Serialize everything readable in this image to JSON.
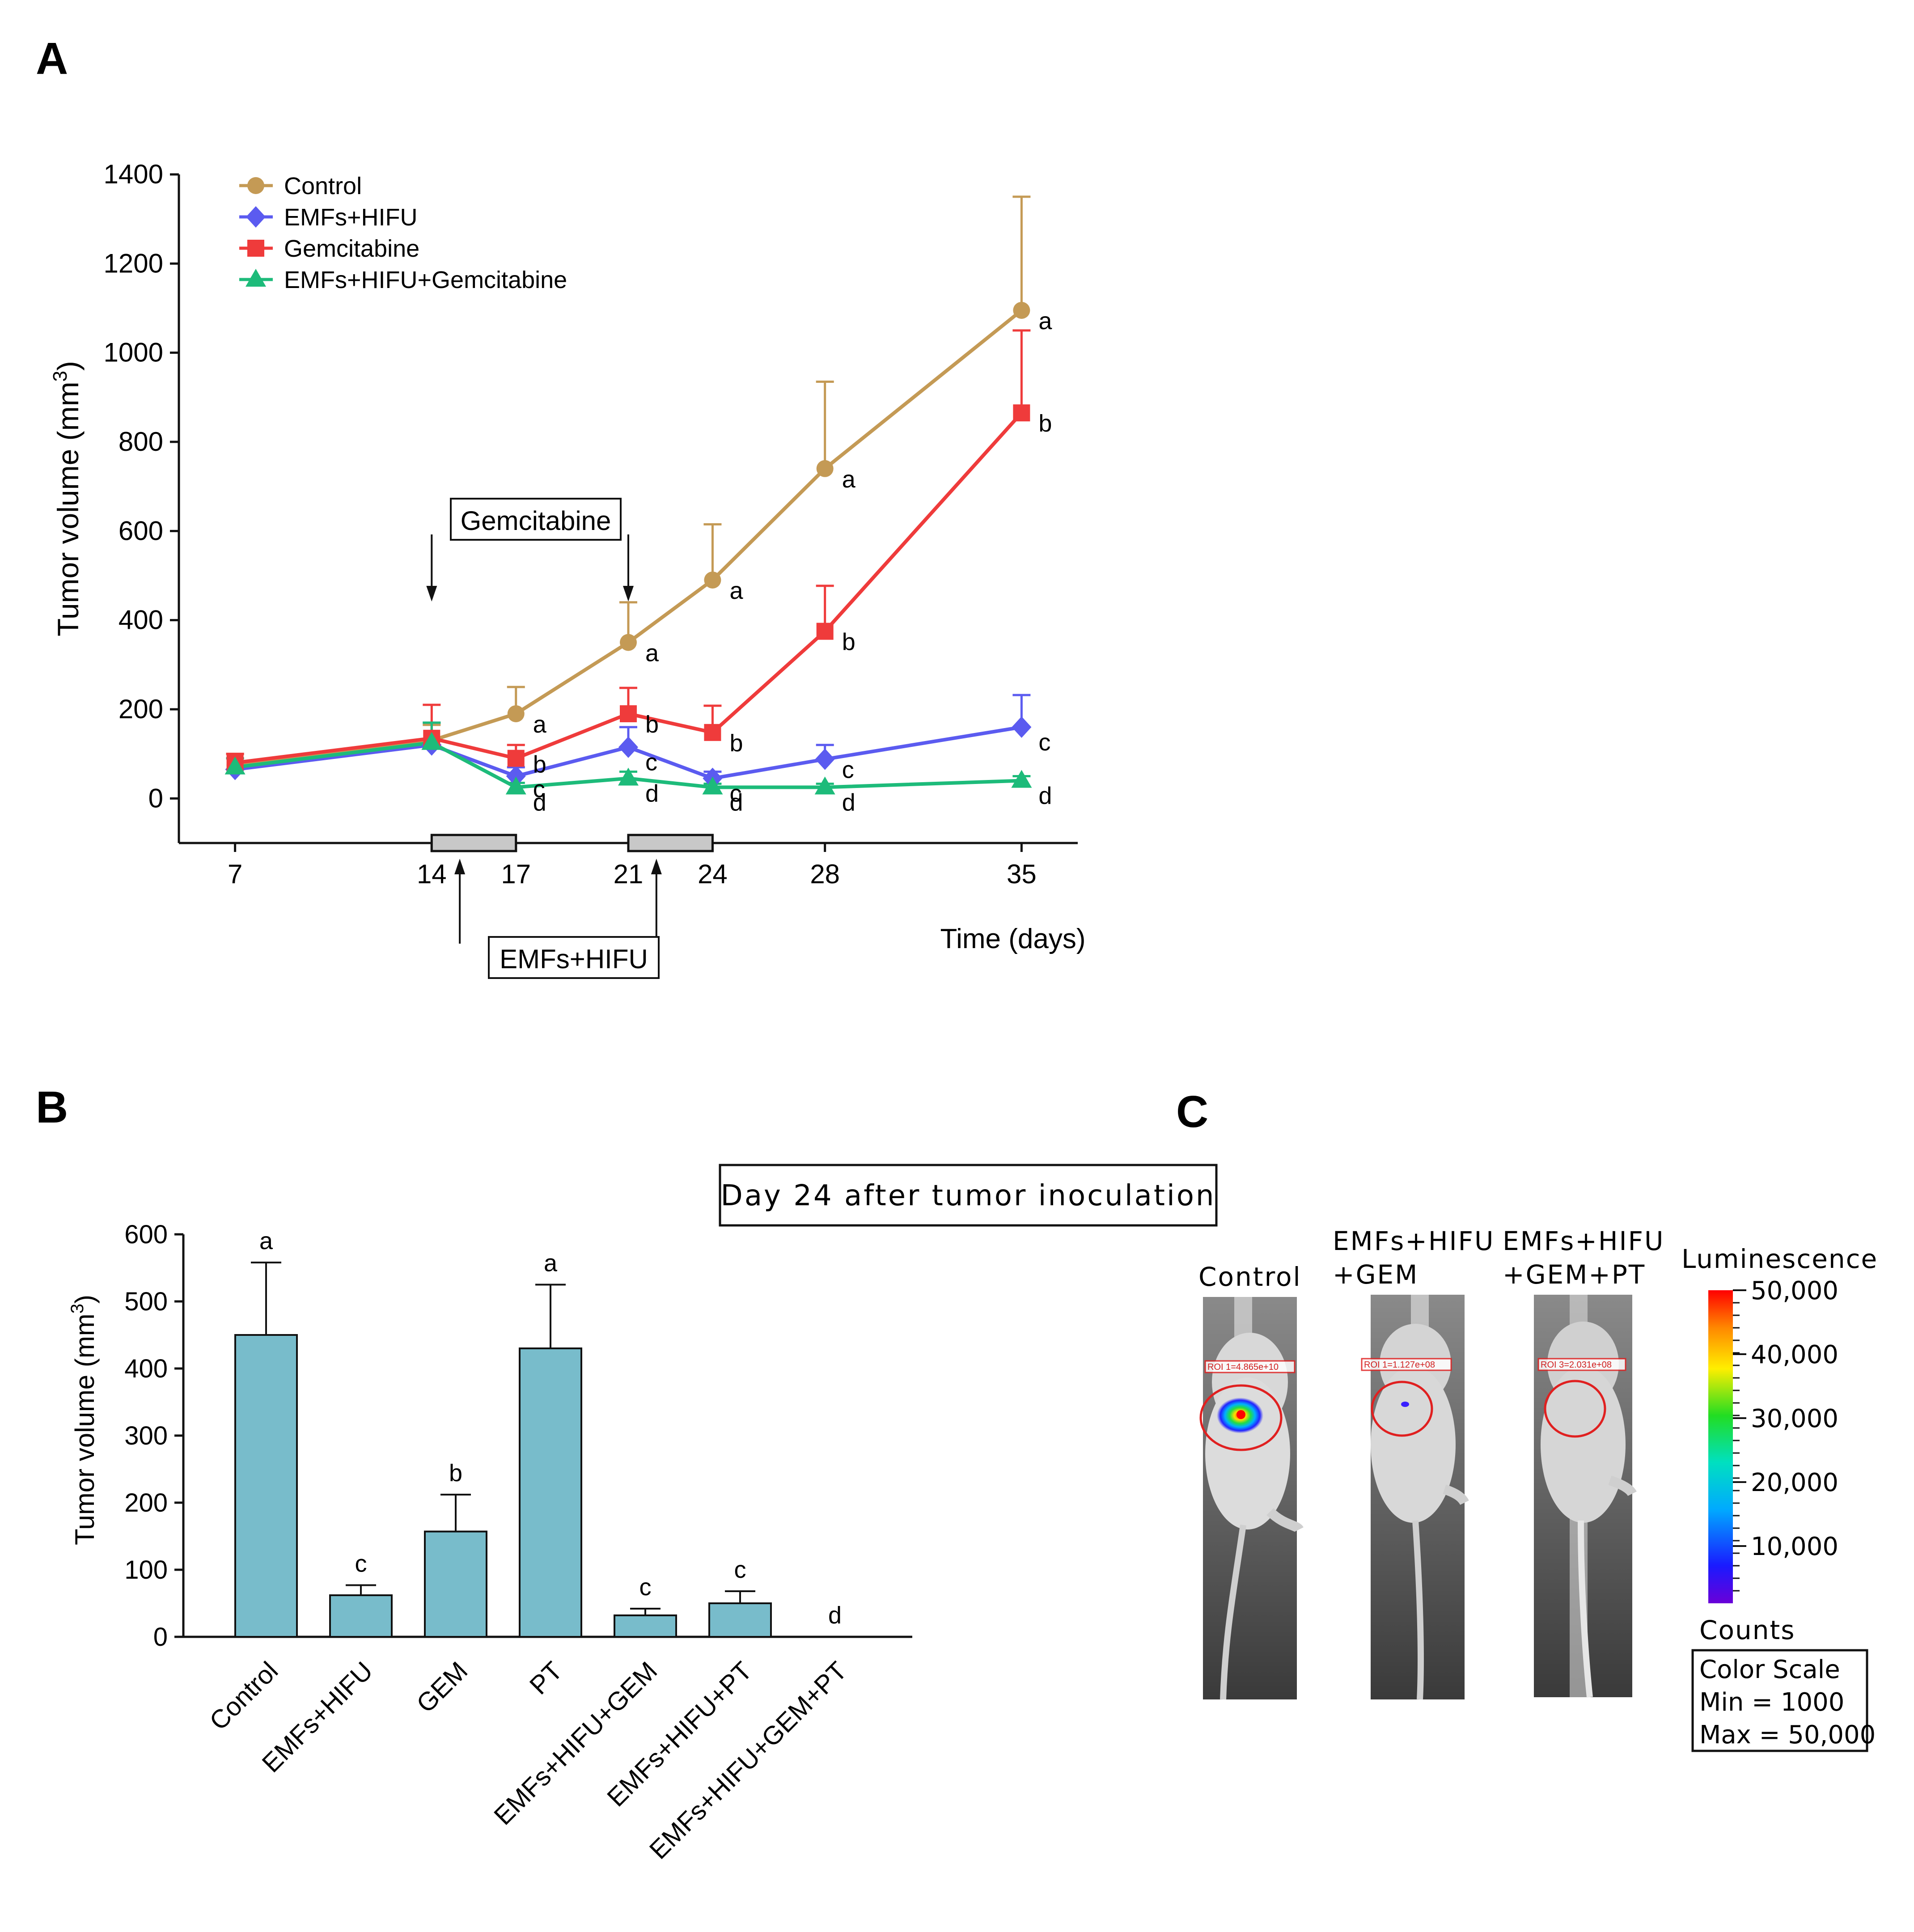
{
  "panels": {
    "a": "A",
    "b": "B",
    "c": "C"
  },
  "colors": {
    "control": "#c49a55",
    "emfs_hifu": "#5b5bf0",
    "gemcitabine": "#ef3b3b",
    "combo": "#1dbb7a",
    "bar": "#78bccb"
  },
  "chart_data": [
    {
      "id": "A",
      "type": "line",
      "x": [
        7,
        14,
        17,
        21,
        24,
        28,
        35
      ],
      "xticks": [
        "7",
        "14",
        "17",
        "21",
        "24",
        "28",
        "35"
      ],
      "yticks": [
        "0",
        "200",
        "400",
        "600",
        "800",
        "1000",
        "1200",
        "1400"
      ],
      "ylim": [
        -100,
        1400
      ],
      "xlim": [
        5,
        37
      ],
      "ylabel": "Tumor volume (mm",
      "ylabel_sup": "3",
      "ylabel_end": ")",
      "xlabel": "Time (days)",
      "legend_position": "top-left",
      "series": [
        {
          "key": "control",
          "name": "Control",
          "marker": "circle",
          "values": [
            75,
            130,
            190,
            350,
            490,
            740,
            1095
          ],
          "err": [
            25,
            35,
            60,
            90,
            125,
            195,
            255
          ],
          "labels": [
            "",
            "",
            "a",
            "a",
            "a",
            "a",
            "a"
          ]
        },
        {
          "key": "emfs_hifu",
          "name": "EMFs+HIFU",
          "marker": "diamond",
          "values": [
            65,
            120,
            50,
            115,
            45,
            88,
            160
          ],
          "err": [
            25,
            50,
            20,
            45,
            15,
            32,
            72
          ],
          "labels": [
            "",
            "",
            "c",
            "c",
            "c",
            "c",
            "c"
          ]
        },
        {
          "key": "gemcitabine",
          "name": "Gemcitabine",
          "marker": "square",
          "values": [
            80,
            135,
            90,
            190,
            148,
            375,
            865
          ],
          "err": [
            20,
            75,
            30,
            58,
            60,
            102,
            185
          ],
          "labels": [
            "",
            "",
            "b",
            "b",
            "b",
            "b",
            "b"
          ]
        },
        {
          "key": "combo",
          "name": "EMFs+HIFU+Gemcitabine",
          "marker": "triangle",
          "values": [
            70,
            125,
            25,
            45,
            25,
            25,
            40
          ],
          "err": [
            20,
            45,
            10,
            15,
            8,
            8,
            10
          ],
          "labels": [
            "",
            "",
            "d",
            "d",
            "d",
            "d",
            "d"
          ]
        }
      ],
      "annotations": {
        "gemcitabine_box": "Gemcitabine",
        "emfs_box": "EMFs+HIFU",
        "gem_days": [
          14,
          21
        ],
        "emfs_windows": [
          [
            14,
            17
          ],
          [
            21,
            24
          ]
        ]
      }
    },
    {
      "id": "B",
      "type": "bar",
      "title": "Day 24 after tumor inoculation",
      "categories": [
        "Control",
        "EMFs+HIFU",
        "GEM",
        "PT",
        "EMFs+HIFU+GEM",
        "EMFs+HIFU+PT",
        "EMFs+HIFU+GEM+PT"
      ],
      "values": [
        450,
        62,
        157,
        430,
        32,
        50,
        0
      ],
      "err": [
        108,
        15,
        55,
        95,
        10,
        18,
        0
      ],
      "letters": [
        "a",
        "c",
        "b",
        "a",
        "c",
        "c",
        "d"
      ],
      "ylim": [
        0,
        600
      ],
      "yticks": [
        "0",
        "100",
        "200",
        "300",
        "400",
        "500",
        "600"
      ],
      "ylabel": "Tumor volume (mm",
      "ylabel_sup": "3",
      "ylabel_end": ")"
    }
  ],
  "panel_c": {
    "groups": [
      {
        "label1": "Control",
        "label2": "",
        "roi": "ROI 1=4.865e+10"
      },
      {
        "label1": "EMFs+HIFU",
        "label2": "+GEM",
        "roi": "ROI 1=1.127e+08"
      },
      {
        "label1": "EMFs+HIFU",
        "label2": "+GEM+PT",
        "roi": "ROI 3=2.031e+08"
      }
    ],
    "colorbar": {
      "title": "Luminescence",
      "ticks": [
        "50,000",
        "40,000",
        "30,000",
        "20,000",
        "10,000"
      ],
      "units": "Counts",
      "scale_title": "Color Scale",
      "min": "Min = 1000",
      "max": "Max = 50,000"
    }
  }
}
